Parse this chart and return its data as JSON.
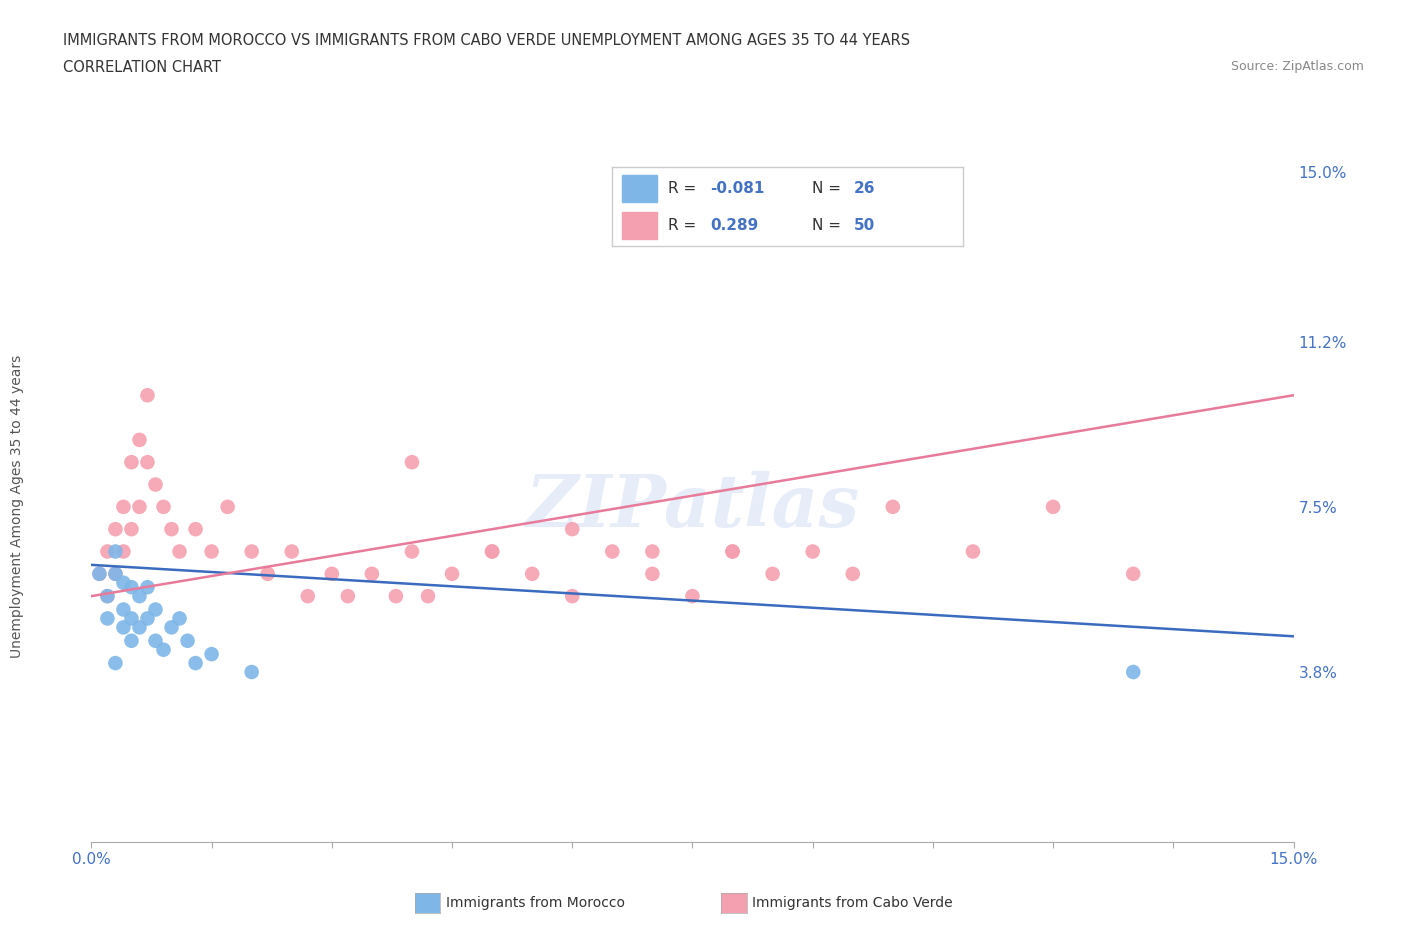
{
  "title_line1": "IMMIGRANTS FROM MOROCCO VS IMMIGRANTS FROM CABO VERDE UNEMPLOYMENT AMONG AGES 35 TO 44 YEARS",
  "title_line2": "CORRELATION CHART",
  "source": "Source: ZipAtlas.com",
  "ylabel": "Unemployment Among Ages 35 to 44 years",
  "xlim": [
    0.0,
    0.15
  ],
  "ylim": [
    0.0,
    0.15
  ],
  "y_tick_labels_right": [
    "15.0%",
    "11.2%",
    "7.5%",
    "3.8%"
  ],
  "y_tick_positions_right": [
    0.15,
    0.112,
    0.075,
    0.038
  ],
  "morocco_color": "#7eb6e8",
  "cabo_verde_color": "#f5a0b0",
  "morocco_line_color": "#3a6bbf",
  "cabo_verde_line_color": "#e87a9a",
  "watermark": "ZIPatlas",
  "background_color": "#ffffff",
  "grid_color": "#cccccc",
  "morocco_scatter_x": [
    0.001,
    0.002,
    0.002,
    0.003,
    0.003,
    0.003,
    0.004,
    0.004,
    0.004,
    0.005,
    0.005,
    0.005,
    0.006,
    0.006,
    0.007,
    0.007,
    0.008,
    0.008,
    0.009,
    0.01,
    0.011,
    0.012,
    0.013,
    0.015,
    0.02,
    0.13
  ],
  "morocco_scatter_y": [
    0.06,
    0.055,
    0.05,
    0.065,
    0.06,
    0.04,
    0.058,
    0.052,
    0.048,
    0.057,
    0.05,
    0.045,
    0.055,
    0.048,
    0.057,
    0.05,
    0.052,
    0.045,
    0.043,
    0.048,
    0.05,
    0.045,
    0.04,
    0.042,
    0.038,
    0.038
  ],
  "cabo_verde_scatter_x": [
    0.001,
    0.002,
    0.002,
    0.003,
    0.003,
    0.004,
    0.004,
    0.005,
    0.005,
    0.006,
    0.006,
    0.007,
    0.007,
    0.008,
    0.009,
    0.01,
    0.011,
    0.013,
    0.015,
    0.017,
    0.02,
    0.022,
    0.025,
    0.027,
    0.03,
    0.032,
    0.035,
    0.038,
    0.04,
    0.042,
    0.045,
    0.05,
    0.055,
    0.06,
    0.065,
    0.07,
    0.075,
    0.08,
    0.085,
    0.09,
    0.095,
    0.1,
    0.11,
    0.12,
    0.13,
    0.04,
    0.05,
    0.06,
    0.07,
    0.08
  ],
  "cabo_verde_scatter_y": [
    0.06,
    0.065,
    0.055,
    0.07,
    0.06,
    0.075,
    0.065,
    0.085,
    0.07,
    0.09,
    0.075,
    0.1,
    0.085,
    0.08,
    0.075,
    0.07,
    0.065,
    0.07,
    0.065,
    0.075,
    0.065,
    0.06,
    0.065,
    0.055,
    0.06,
    0.055,
    0.06,
    0.055,
    0.065,
    0.055,
    0.06,
    0.065,
    0.06,
    0.055,
    0.065,
    0.06,
    0.055,
    0.065,
    0.06,
    0.065,
    0.06,
    0.075,
    0.065,
    0.075,
    0.06,
    0.085,
    0.065,
    0.07,
    0.065,
    0.065
  ],
  "morocco_line_x": [
    0.0,
    0.15
  ],
  "morocco_line_y": [
    0.062,
    0.046
  ],
  "cabo_verde_line_x": [
    0.0,
    0.15
  ],
  "cabo_verde_line_y": [
    0.055,
    0.1
  ]
}
